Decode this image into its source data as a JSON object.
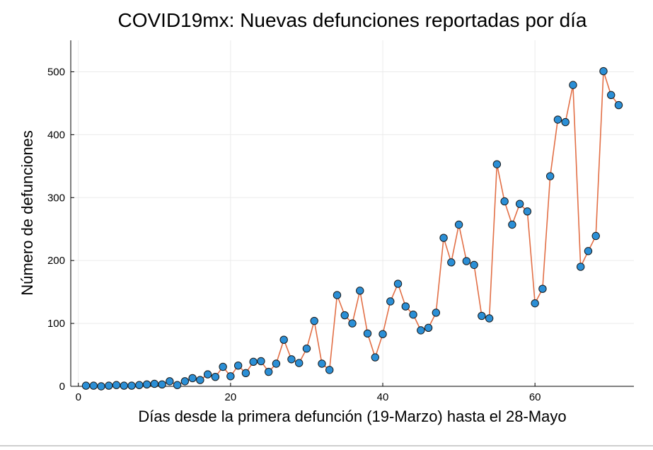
{
  "chart_data": {
    "type": "line",
    "title": "COVID19mx: Nuevas defunciones reportadas por día",
    "xlabel": "Días desde la primera defunción (19-Marzo) hasta el 28-Mayo",
    "ylabel": "Número de defunciones",
    "xlim": [
      -1,
      73
    ],
    "ylim": [
      0,
      550
    ],
    "xticks": [
      0,
      20,
      40,
      60
    ],
    "yticks": [
      0,
      100,
      200,
      300,
      400,
      500
    ],
    "grid": true,
    "legend": "none",
    "line_color": "#e26f46",
    "marker_color": "#2b8fd6",
    "series": [
      {
        "x": [
          1,
          2,
          3,
          4,
          5,
          6,
          7,
          8,
          9,
          10,
          11,
          12,
          13,
          14,
          15,
          16,
          17,
          18,
          19,
          20,
          21,
          22,
          23,
          24,
          25,
          26,
          27,
          28,
          29,
          30,
          31,
          32,
          33,
          34,
          35,
          36,
          37,
          38,
          39,
          40,
          41,
          42,
          43,
          44,
          45,
          46,
          47,
          48,
          49,
          50,
          51,
          52,
          53,
          54,
          55,
          56,
          57,
          58,
          59,
          60,
          61,
          62,
          63,
          64,
          65,
          66,
          67,
          68,
          69,
          70,
          71
        ],
        "values": [
          1,
          1,
          0,
          1,
          2,
          1,
          1,
          2,
          3,
          4,
          3,
          8,
          2,
          8,
          13,
          10,
          19,
          15,
          31,
          16,
          33,
          21,
          39,
          40,
          23,
          36,
          74,
          43,
          37,
          60,
          104,
          36,
          26,
          145,
          113,
          100,
          152,
          84,
          46,
          83,
          135,
          163,
          127,
          114,
          89,
          93,
          117,
          236,
          197,
          257,
          199,
          193,
          112,
          108,
          353,
          294,
          257,
          290,
          278,
          132,
          155,
          334,
          424,
          420,
          479,
          190,
          215,
          239,
          501,
          463,
          447
        ]
      }
    ]
  }
}
